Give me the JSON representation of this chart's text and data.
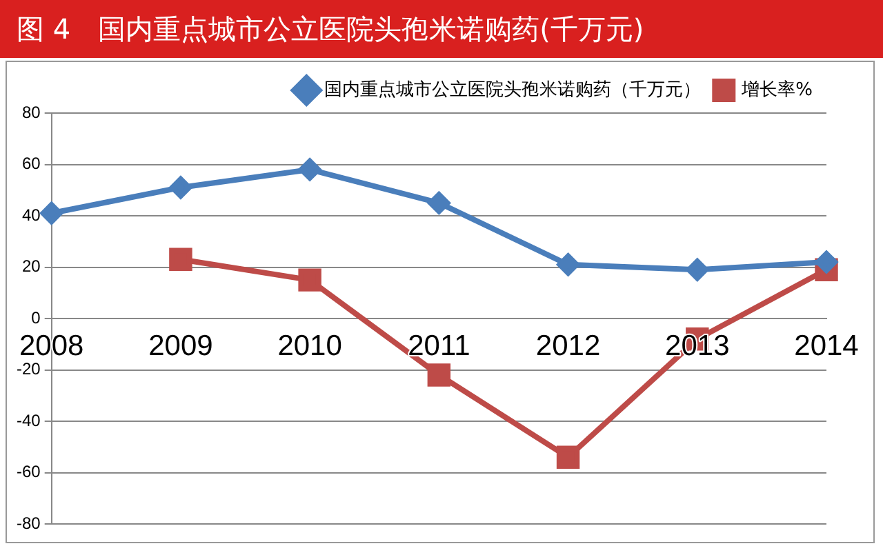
{
  "chart_data": {
    "type": "line",
    "title": "图 4　国内重点城市公立医院头孢米诺购药(千万元)",
    "categories": [
      "2008",
      "2009",
      "2010",
      "2011",
      "2012",
      "2013",
      "2014"
    ],
    "series": [
      {
        "name": "国内重点城市公立医院头孢米诺购药（千万元）",
        "color": "#4a7ebb",
        "marker": "diamond",
        "values": [
          41,
          51,
          58,
          45,
          21,
          19,
          22
        ]
      },
      {
        "name": "增长率%",
        "color": "#be4b48",
        "marker": "square",
        "values": [
          null,
          23,
          15,
          -22,
          -54,
          -8,
          19
        ]
      }
    ],
    "ylim": [
      -80,
      80
    ],
    "yticks": [
      -80,
      -60,
      -40,
      -20,
      0,
      20,
      40,
      60,
      80
    ],
    "grid": "y",
    "legend": "top"
  }
}
